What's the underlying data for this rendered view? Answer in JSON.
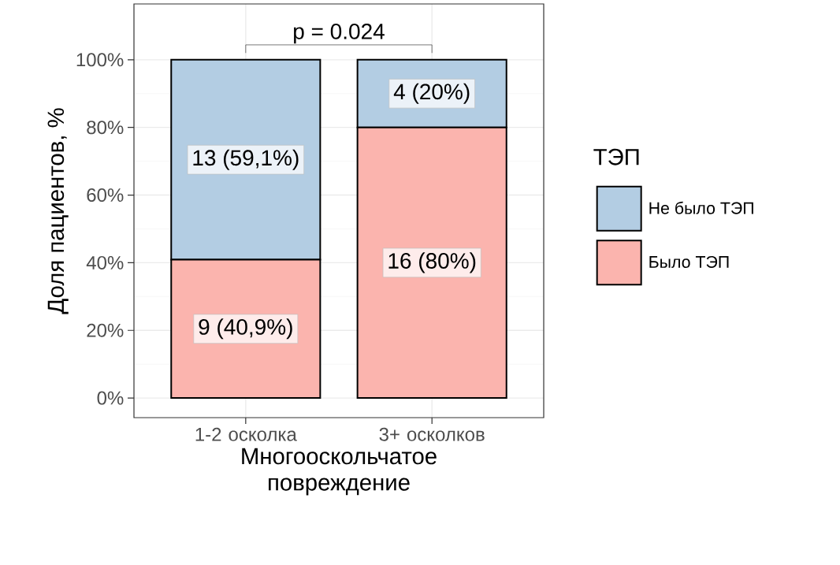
{
  "chart_data": {
    "type": "bar",
    "stacked": true,
    "categories": [
      "1-2 осколка",
      "3+ осколков"
    ],
    "series": [
      {
        "name": "Было ТЭП",
        "color": "#fbb4ae",
        "values": [
          40.9,
          80
        ],
        "value_labels": [
          "9 (40,9%)",
          "16 (80%)"
        ]
      },
      {
        "name": "Не было ТЭП",
        "color": "#b3cde3",
        "values": [
          59.1,
          20
        ],
        "value_labels": [
          "13 (59,1%)",
          "4 (20%)"
        ]
      }
    ],
    "xlabel": "Многооскольчатое повреждение",
    "ylabel": "Доля пациентов, %",
    "legend_title": "ТЭП",
    "annotations": [
      "p = 0.024"
    ],
    "ylim": [
      -5.8,
      116.5
    ],
    "yticks": [
      {
        "value": 0,
        "label": "0%"
      },
      {
        "value": 20,
        "label": "20%"
      },
      {
        "value": 40,
        "label": "40%"
      },
      {
        "value": 60,
        "label": "60%"
      },
      {
        "value": 80,
        "label": "80%"
      },
      {
        "value": 100,
        "label": "100%"
      }
    ],
    "grid": true,
    "legend": "right"
  }
}
